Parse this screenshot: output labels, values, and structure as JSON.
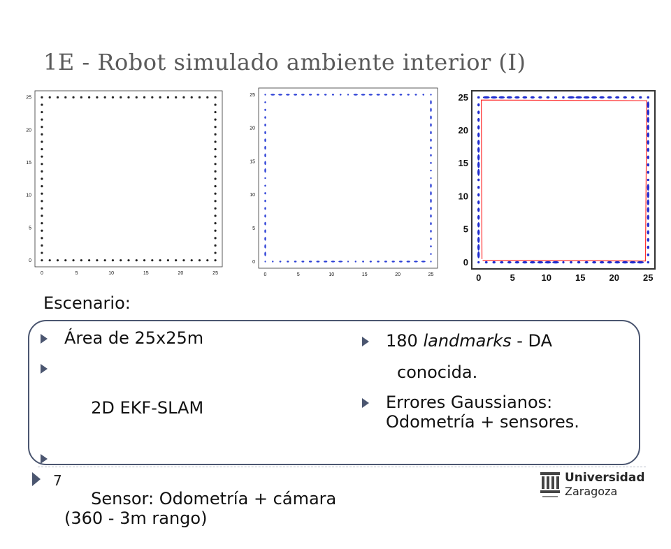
{
  "slide": {
    "title": "1E - Robot simulado ambiente interior (I)",
    "page_number": "7"
  },
  "plots": [
    {
      "name": "landmarks-map",
      "x_ticks": [
        "0",
        "5",
        "10",
        "15",
        "20",
        "25"
      ],
      "y_ticks": [
        "0",
        "5",
        "10",
        "15",
        "20",
        "25"
      ],
      "marker_color": "#222222"
    },
    {
      "name": "ekf-slam-estimate",
      "x_ticks": [
        "0",
        "5",
        "10",
        "15",
        "20",
        "25"
      ],
      "y_ticks": [
        "0",
        "5",
        "10",
        "15",
        "20",
        "25"
      ],
      "marker_color": "#2b3fd6"
    },
    {
      "name": "ekf-slam-trajectory",
      "x_ticks": [
        "0",
        "5",
        "10",
        "15",
        "20",
        "25"
      ],
      "y_ticks": [
        "0",
        "5",
        "10",
        "15",
        "20",
        "25"
      ],
      "marker_color": "#1f2ccf",
      "trajectory_color": "#ff3030"
    }
  ],
  "content": {
    "section_label": "Escenario:",
    "left_bullets": [
      "Área de 25x25m",
      " 2D EKF-SLAM",
      " Sensor: Odometría + cámara (360 - 3m rango)"
    ],
    "right_bullet_1_num": "180 ",
    "right_bullet_1_em": "landmarks",
    "right_bullet_1_rest": " - DA",
    "right_bullet_1_cont": "conocida.",
    "right_bullet_2": "Errores Gaussianos: Odometría + sensores."
  },
  "logo": {
    "line1": "Universidad",
    "line2": "Zaragoza"
  },
  "icons": {
    "bullet": "triangle-right-icon",
    "logo_mark": "university-emblem-icon"
  }
}
